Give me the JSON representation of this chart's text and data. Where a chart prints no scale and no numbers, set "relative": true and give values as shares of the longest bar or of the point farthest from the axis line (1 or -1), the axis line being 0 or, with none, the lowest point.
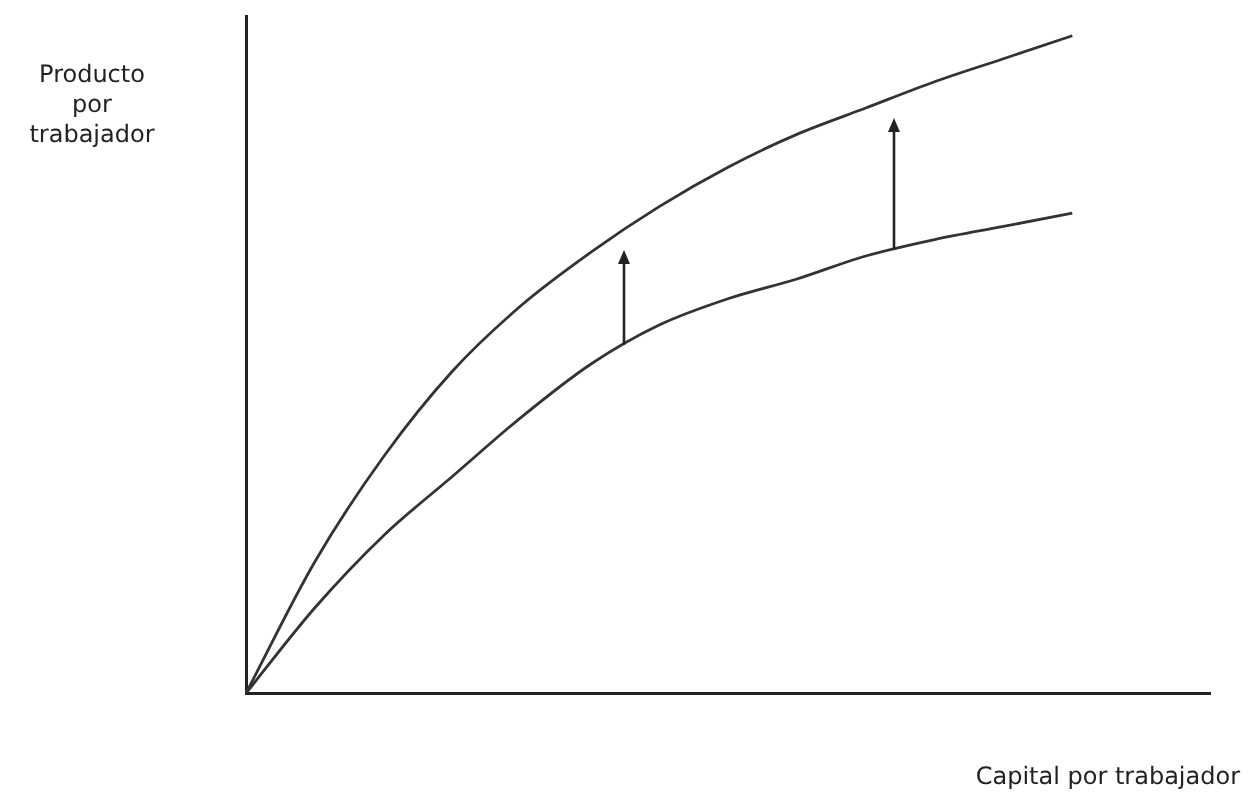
{
  "chart_data": {
    "type": "line",
    "relative": true,
    "xlabel": "Capital por trabajador",
    "ylabel": "Producto por trabajador",
    "legend": false,
    "marker": "none",
    "line_style": "solid",
    "categories": [
      null,
      null,
      null,
      null,
      null,
      null,
      null,
      null,
      null,
      null,
      null,
      null,
      null,
      null,
      null
    ],
    "series": [
      {
        "color": "#333333",
        "values": [
          0,
          0.2,
          0.36,
          0.49,
          0.59,
          0.67,
          0.74,
          0.8,
          0.85,
          0.89,
          0.93,
          0.965,
          1.0,
          null,
          null
        ]
      },
      {
        "color": "#333333",
        "values": [
          0,
          0.13,
          0.24,
          0.33,
          0.42,
          0.5,
          0.56,
          0.6,
          0.63,
          0.665,
          0.69,
          0.71,
          0.73,
          null,
          null
        ]
      }
    ]
  }
}
